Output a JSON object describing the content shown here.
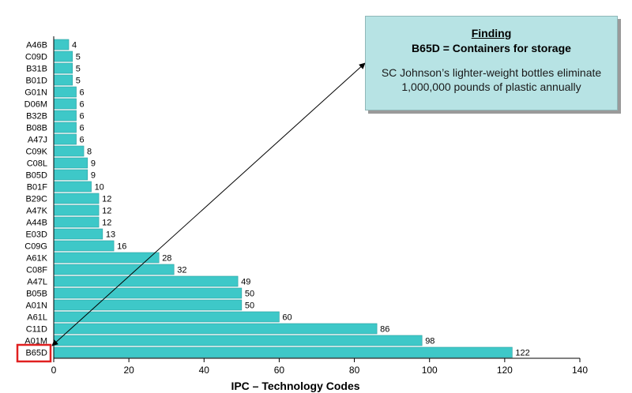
{
  "chart_data": {
    "type": "bar",
    "orientation": "horizontal",
    "categories": [
      "A46B",
      "C09D",
      "B31B",
      "B01D",
      "G01N",
      "D06M",
      "B32B",
      "B08B",
      "A47J",
      "C09K",
      "C08L",
      "B05D",
      "B01F",
      "B29C",
      "A47K",
      "A44B",
      "E03D",
      "C09G",
      "A61K",
      "C08F",
      "A47L",
      "B05B",
      "A01N",
      "A61L",
      "C11D",
      "A01M",
      "B65D"
    ],
    "values": [
      4,
      5,
      5,
      5,
      6,
      6,
      6,
      6,
      6,
      8,
      9,
      9,
      10,
      12,
      12,
      12,
      13,
      16,
      28,
      32,
      49,
      50,
      50,
      60,
      86,
      98,
      122
    ],
    "xlabel": "IPC – Technology Codes",
    "ylabel": "",
    "xlim": [
      0,
      140
    ],
    "xticks": [
      0,
      20,
      40,
      60,
      80,
      100,
      120,
      140
    ],
    "grid": false,
    "legend": "none",
    "highlighted_category": "B65D",
    "colors": {
      "bar": "#3ec8c8",
      "bar_stroke": "#2a9e9e",
      "highlight": "#e02020",
      "annotation_fill": "#b7e3e4"
    }
  },
  "annotation": {
    "title": "Finding",
    "subtitle": "B65D = Containers for storage",
    "text_line1": "SC Johnson’s lighter-weight bottles eliminate",
    "text_line2": "1,000,000 pounds of plastic annually"
  }
}
